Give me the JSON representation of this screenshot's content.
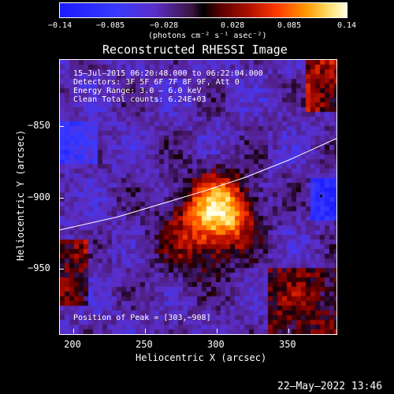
{
  "colorbar": {
    "ticks": [
      "−0.14",
      "−0.085",
      "−0.028",
      "0.028",
      "0.085",
      "0.14"
    ],
    "unit_label": "(photons cm⁻² s⁻¹ asec⁻²)"
  },
  "title": "Reconstructed RHESSI Image",
  "info": {
    "time": "15–Jul–2015 06:20:48.000 to 06:22:04.000",
    "detectors": "Detectors: 3F 5F 6F 7F 8F 9F, Att 0",
    "energy": "Energy Range: 3.0 – 6.0 keV",
    "clean": "Clean    Total counts: 6.24E+03"
  },
  "peak_label": "Position of Peak = [303,−908]",
  "footer_date": "22–May–2022 13:46",
  "chart_data": {
    "type": "heatmap",
    "title": "Reconstructed RHESSI Image",
    "xlabel": "Heliocentric X (arcsec)",
    "ylabel": "Heliocentric Y (arcsec)",
    "xlim": [
      190,
      383
    ],
    "ylim": [
      -995,
      -803
    ],
    "x_ticks": [
      200,
      250,
      300,
      350
    ],
    "x_tick_labels": [
      "200",
      "250",
      "300",
      "350"
    ],
    "y_ticks": [
      -850,
      -900,
      -950
    ],
    "y_tick_labels": [
      "−850",
      "−900",
      "−950"
    ],
    "colorbar_range": [
      -0.14,
      0.14
    ],
    "peak": [
      303,
      -908
    ],
    "limb_curve": [
      [
        190,
        -922
      ],
      [
        230,
        -913
      ],
      [
        260,
        -904
      ],
      [
        290,
        -895
      ],
      [
        320,
        -885
      ],
      [
        350,
        -873
      ],
      [
        383,
        -858
      ]
    ]
  },
  "colors": {
    "background": "#000000",
    "text": "#ffffff",
    "limb": "#ffffff"
  }
}
